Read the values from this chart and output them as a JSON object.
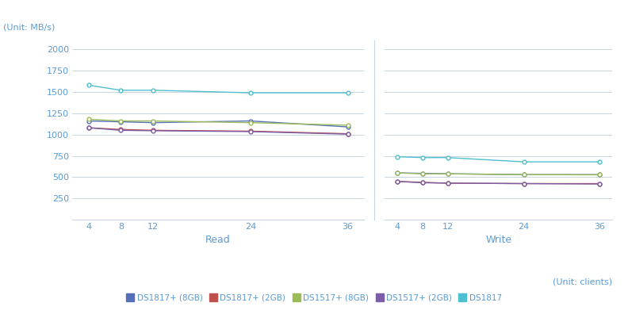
{
  "x_labels": [
    4,
    8,
    12,
    24,
    36
  ],
  "read": {
    "DS1817": [
      1580,
      1520,
      1520,
      1490,
      1490
    ],
    "DS1817+_8GB": [
      1160,
      1150,
      1140,
      1160,
      1090
    ],
    "DS1817+_2GB": [
      1080,
      1060,
      1050,
      1040,
      1010
    ],
    "DS1517+_8GB": [
      1180,
      1160,
      1160,
      1140,
      1110
    ],
    "DS1517+_2GB": [
      1080,
      1050,
      1045,
      1035,
      1005
    ]
  },
  "write": {
    "DS1817": [
      740,
      730,
      730,
      680,
      680
    ],
    "DS1817+_8GB": [
      550,
      545,
      540,
      530,
      530
    ],
    "DS1817+_2GB": [
      450,
      440,
      430,
      425,
      425
    ],
    "DS1517+_8GB": [
      550,
      540,
      540,
      530,
      528
    ],
    "DS1517+_2GB": [
      450,
      435,
      430,
      425,
      420
    ]
  },
  "colors": {
    "DS1817": "#4DBFCE",
    "DS1817+_8GB": "#5470B8",
    "DS1817+_2GB": "#C0504D",
    "DS1517+_8GB": "#9BBB59",
    "DS1517+_2GB": "#7B5EA7"
  },
  "legend_labels": {
    "DS1817+_8GB": "DS1817+ (8GB)",
    "DS1817+_2GB": "DS1817+ (2GB)",
    "DS1517+_8GB": "DS1517+ (8GB)",
    "DS1517+_2GB": "DS1517+ (2GB)",
    "DS1817": "DS1817"
  },
  "ylim": [
    0,
    2100
  ],
  "yticks": [
    250,
    500,
    750,
    1000,
    1250,
    1500,
    1750,
    2000
  ],
  "unit_label_top": "(Unit: MB/s)",
  "unit_label_bottom": "(Unit: clients)",
  "xlabel_read": "Read",
  "xlabel_write": "Write",
  "background_color": "#FFFFFF",
  "grid_color": "#C8D4DF",
  "text_color": "#5B9BD5",
  "axis_label_color": "#5B9BD5",
  "series_order": [
    "DS1817",
    "DS1817+_8GB",
    "DS1817+_2GB",
    "DS1517+_8GB",
    "DS1517+_2GB"
  ],
  "legend_order": [
    "DS1817+_8GB",
    "DS1817+_2GB",
    "DS1517+_8GB",
    "DS1517+_2GB",
    "DS1817"
  ]
}
